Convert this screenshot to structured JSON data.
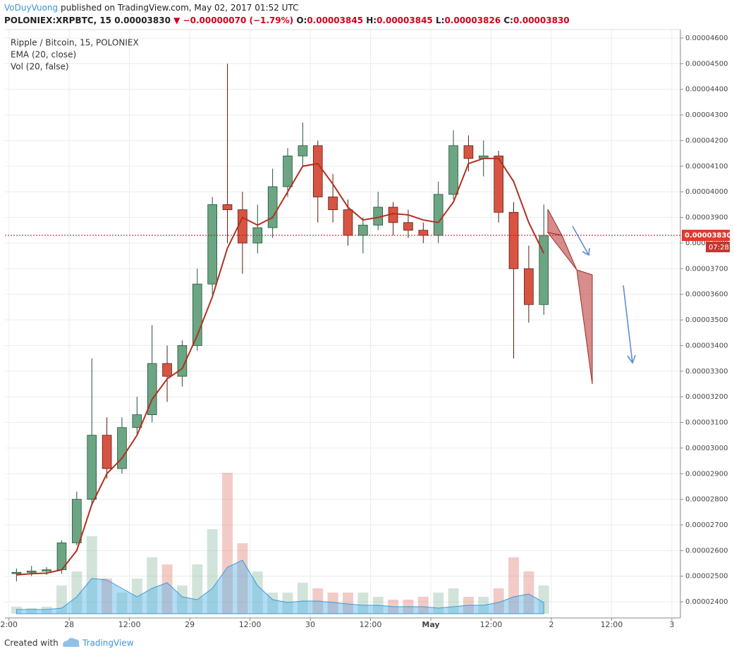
{
  "header": {
    "author": "VoDuyVuong",
    "published": "published on TradingView.com, May 02, 2017 01:52 UTC",
    "symbol": "POLONIEX:XRPBTC, 15",
    "last": "0.00003830",
    "change": "▼ −0.00000070 (−1.79%)",
    "o_label": "O:",
    "o": "0.00003845",
    "h_label": "H:",
    "h": "0.00003845",
    "l_label": "L:",
    "l": "0.00003826",
    "c_label": "C:",
    "c": "0.00003830",
    "countdown": "07:28"
  },
  "footer": {
    "created": "Created with",
    "brand": "TradingView"
  },
  "chart_data": {
    "type": "candlestick",
    "title": "Ripple / Bitcoin, 15, POLONIEX",
    "x": [
      -10.5,
      -7.5,
      -4.5,
      -1.5,
      1.5,
      4.5,
      7.5,
      10.5,
      13.5,
      16.5,
      19.5,
      22.5,
      25.5,
      28.5,
      31.5,
      34.5,
      37.5,
      40.5,
      43.5,
      46.5,
      49.5,
      52.5,
      55.5,
      58.5,
      61.5,
      64.5,
      67.5,
      70.5,
      73.5,
      76.5,
      79.5,
      82.5,
      85.5,
      88.5,
      91.5,
      94.5
    ],
    "open": [
      2.51e-05,
      2.515e-05,
      2.52e-05,
      2.525e-05,
      2.63e-05,
      2.8e-05,
      3.05e-05,
      2.92e-05,
      3.08e-05,
      3.13e-05,
      3.33e-05,
      3.28e-05,
      3.4e-05,
      3.64e-05,
      3.95e-05,
      3.93e-05,
      3.8e-05,
      3.86e-05,
      4.02e-05,
      4.14e-05,
      4.18e-05,
      3.98e-05,
      3.93e-05,
      3.83e-05,
      3.87e-05,
      3.94e-05,
      3.88e-05,
      3.85e-05,
      3.83e-05,
      3.99e-05,
      4.18e-05,
      4.13e-05,
      4.14e-05,
      3.92e-05,
      3.7e-05,
      3.56e-05
    ],
    "high": [
      2.53e-05,
      2.54e-05,
      2.535e-05,
      2.64e-05,
      2.83e-05,
      3.35e-05,
      3.12e-05,
      3.12e-05,
      3.2e-05,
      3.48e-05,
      3.4e-05,
      3.42e-05,
      3.7e-05,
      3.98e-05,
      4.5e-05,
      4e-05,
      3.95e-05,
      4.09e-05,
      4.17e-05,
      4.27e-05,
      4.2e-05,
      4.07e-05,
      3.97e-05,
      3.9e-05,
      4e-05,
      3.96e-05,
      3.93e-05,
      3.88e-05,
      4.04e-05,
      4.24e-05,
      4.22e-05,
      4.2e-05,
      4.16e-05,
      3.96e-05,
      3.79e-05,
      3.95e-05
    ],
    "low": [
      2.48e-05,
      2.5e-05,
      2.505e-05,
      2.51e-05,
      2.62e-05,
      2.78e-05,
      2.88e-05,
      2.9e-05,
      3.05e-05,
      3.1e-05,
      3.18e-05,
      3.24e-05,
      3.38e-05,
      3.6e-05,
      3.8e-05,
      3.68e-05,
      3.76e-05,
      3.82e-05,
      3.98e-05,
      4.1e-05,
      3.88e-05,
      3.88e-05,
      3.79e-05,
      3.76e-05,
      3.85e-05,
      3.83e-05,
      3.82e-05,
      3.8e-05,
      3.8e-05,
      3.97e-05,
      4.08e-05,
      4.06e-05,
      3.88e-05,
      3.35e-05,
      3.49e-05,
      3.52e-05
    ],
    "close": [
      2.515e-05,
      2.52e-05,
      2.525e-05,
      2.63e-05,
      2.8e-05,
      3.05e-05,
      2.92e-05,
      3.08e-05,
      3.13e-05,
      3.33e-05,
      3.28e-05,
      3.4e-05,
      3.64e-05,
      3.95e-05,
      3.93e-05,
      3.8e-05,
      3.86e-05,
      4.02e-05,
      4.14e-05,
      4.18e-05,
      3.98e-05,
      3.93e-05,
      3.83e-05,
      3.87e-05,
      3.94e-05,
      3.88e-05,
      3.85e-05,
      3.83e-05,
      3.99e-05,
      4.18e-05,
      4.13e-05,
      4.14e-05,
      3.92e-05,
      3.7e-05,
      3.56e-05,
      3.83e-05
    ],
    "up_color": "#6ba583",
    "down_color": "#d75442",
    "series": [
      {
        "name": "EMA (20, close)",
        "color": "#b2301f",
        "values": [
          2.505e-05,
          2.51e-05,
          2.512e-05,
          2.525e-05,
          2.6e-05,
          2.78e-05,
          2.9e-05,
          2.96e-05,
          3.05e-05,
          3.19e-05,
          3.27e-05,
          3.31e-05,
          3.44e-05,
          3.59e-05,
          3.78e-05,
          3.9e-05,
          3.87e-05,
          3.9e-05,
          4e-05,
          4.1e-05,
          4.11e-05,
          4.03e-05,
          3.94e-05,
          3.89e-05,
          3.9e-05,
          3.915e-05,
          3.91e-05,
          3.89e-05,
          3.88e-05,
          3.96e-05,
          4.11e-05,
          4.13e-05,
          4.13e-05,
          4.04e-05,
          3.88e-05,
          3.76e-05
        ]
      }
    ],
    "volume": {
      "name": "Vol (20, false)",
      "ma_color": "#56b4e9",
      "values": [
        5,
        4,
        5,
        20,
        30,
        55,
        25,
        15,
        25,
        40,
        35,
        20,
        35,
        60,
        100,
        50,
        30,
        15,
        15,
        22,
        18,
        15,
        15,
        15,
        12,
        10,
        10,
        12,
        15,
        18,
        12,
        12,
        18,
        40,
        30,
        20
      ],
      "ma": [
        3,
        3,
        3,
        4,
        12,
        25,
        24,
        18,
        12,
        18,
        22,
        12,
        10,
        18,
        33,
        38,
        20,
        10,
        8,
        9,
        9,
        8,
        7,
        6,
        6,
        5,
        5,
        5,
        4,
        5,
        6,
        6,
        8,
        12,
        14,
        8
      ]
    },
    "xlim": [
      -12.8,
      121.7
    ],
    "xticks": [
      {
        "value": -12,
        "label": "2:00"
      },
      {
        "value": 0,
        "label": "28"
      },
      {
        "value": 12,
        "label": "12:00"
      },
      {
        "value": 24,
        "label": "29"
      },
      {
        "value": 36,
        "label": "12:00"
      },
      {
        "value": 48,
        "label": "30"
      },
      {
        "value": 60,
        "label": "12:00"
      },
      {
        "value": 72,
        "label": "May"
      },
      {
        "value": 84,
        "label": "12:00"
      },
      {
        "value": 96,
        "label": "2"
      },
      {
        "value": 108,
        "label": "12:00"
      },
      {
        "value": 120,
        "label": "3"
      }
    ],
    "ylim": [
      2.337e-05,
      4.633e-05
    ],
    "yticks": [
      {
        "value": 2.4e-05,
        "label": "0.00002400"
      },
      {
        "value": 2.5e-05,
        "label": "0.00002500"
      },
      {
        "value": 2.6e-05,
        "label": "0.00002600"
      },
      {
        "value": 2.7e-05,
        "label": "0.00002700"
      },
      {
        "value": 2.8e-05,
        "label": "0.00002800"
      },
      {
        "value": 2.9e-05,
        "label": "0.00002900"
      },
      {
        "value": 3e-05,
        "label": "0.00003000"
      },
      {
        "value": 3.1e-05,
        "label": "0.00003100"
      },
      {
        "value": 3.2e-05,
        "label": "0.00003200"
      },
      {
        "value": 3.3e-05,
        "label": "0.00003300"
      },
      {
        "value": 3.4e-05,
        "label": "0.00003400"
      },
      {
        "value": 3.5e-05,
        "label": "0.00003500"
      },
      {
        "value": 3.6e-05,
        "label": "0.00003600"
      },
      {
        "value": 3.7e-05,
        "label": "0.00003700"
      },
      {
        "value": 3.8e-05,
        "label": "0.00003800"
      },
      {
        "value": 3.9e-05,
        "label": "0.00003900"
      },
      {
        "value": 4e-05,
        "label": "0.00004000"
      },
      {
        "value": 4.1e-05,
        "label": "0.00004100"
      },
      {
        "value": 4.2e-05,
        "label": "0.00004200"
      },
      {
        "value": 4.3e-05,
        "label": "0.00004300"
      },
      {
        "value": 4.4e-05,
        "label": "0.00004400"
      },
      {
        "value": 4.5e-05,
        "label": "0.00004500"
      },
      {
        "value": 4.6e-05,
        "label": "0.00004600"
      }
    ],
    "grid": true
  }
}
